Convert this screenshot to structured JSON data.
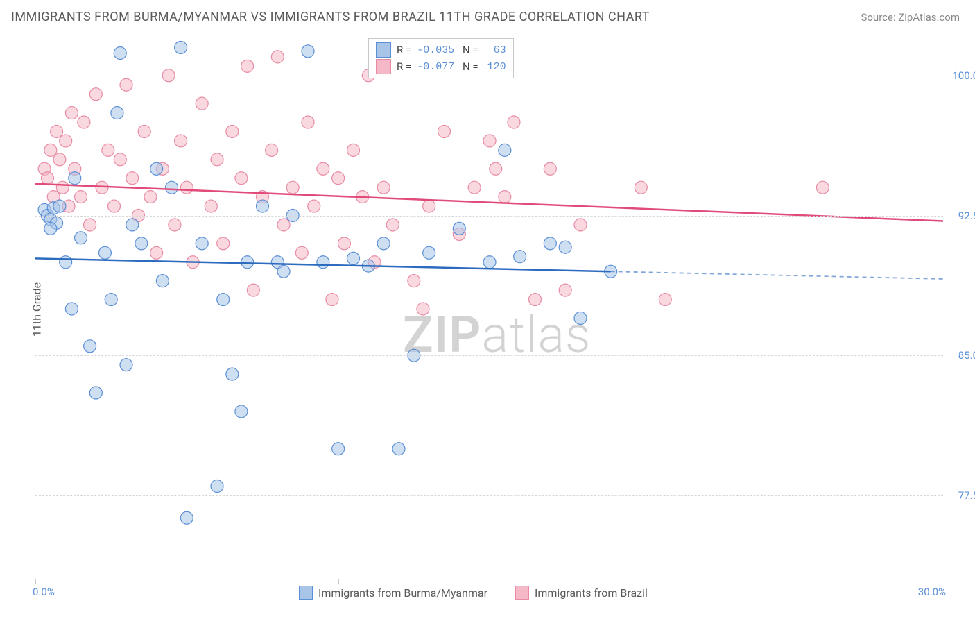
{
  "chart": {
    "title": "IMMIGRANTS FROM BURMA/MYANMAR VS IMMIGRANTS FROM BRAZIL 11TH GRADE CORRELATION CHART",
    "source": "Source: ZipAtlas.com",
    "watermark_prefix": "ZIP",
    "watermark_suffix": "atlas",
    "y_axis_label": "11th Grade",
    "type": "scatter",
    "xlim": [
      0,
      30
    ],
    "ylim": [
      73,
      102
    ],
    "y_ticks": [
      77.5,
      85.0,
      92.5,
      100.0
    ],
    "y_tick_labels": [
      "77.5%",
      "85.0%",
      "92.5%",
      "100.0%"
    ],
    "x_range_labels": {
      "min": "0.0%",
      "max": "30.0%"
    },
    "x_tick_positions": [
      0,
      5,
      10,
      15,
      20,
      25
    ],
    "background_color": "#ffffff",
    "grid_color": "#d8d8d8",
    "axis_color": "#c8c8c8",
    "marker_radius": 9,
    "marker_opacity": 0.55,
    "series": [
      {
        "name": "Immigrants from Burma/Myanmar",
        "fill_color": "#a8c5e8",
        "stroke_color": "#5b8fd6",
        "line_color": "#2d6bbf",
        "R": "-0.035",
        "N": "63",
        "regression": {
          "x1": 0,
          "y1": 90.2,
          "x2": 19,
          "y2": 89.5,
          "x2_dash": 30,
          "y2_dash": 89.1
        },
        "points": [
          [
            0.3,
            92.8
          ],
          [
            0.4,
            92.5
          ],
          [
            0.5,
            92.3
          ],
          [
            0.6,
            92.9
          ],
          [
            0.7,
            92.1
          ],
          [
            0.8,
            93.0
          ],
          [
            0.5,
            91.8
          ],
          [
            1.0,
            90.0
          ],
          [
            1.2,
            87.5
          ],
          [
            1.3,
            94.5
          ],
          [
            1.5,
            91.3
          ],
          [
            1.8,
            85.5
          ],
          [
            2.0,
            83.0
          ],
          [
            2.3,
            90.5
          ],
          [
            2.5,
            88.0
          ],
          [
            2.7,
            98.0
          ],
          [
            2.8,
            101.2
          ],
          [
            3.0,
            84.5
          ],
          [
            3.2,
            92.0
          ],
          [
            3.5,
            91.0
          ],
          [
            4.0,
            95.0
          ],
          [
            4.2,
            89.0
          ],
          [
            4.5,
            94.0
          ],
          [
            4.8,
            101.5
          ],
          [
            5.0,
            76.3
          ],
          [
            5.5,
            91.0
          ],
          [
            6.0,
            78.0
          ],
          [
            6.2,
            88.0
          ],
          [
            6.5,
            84.0
          ],
          [
            6.8,
            82.0
          ],
          [
            7.0,
            90.0
          ],
          [
            7.5,
            93.0
          ],
          [
            8.0,
            90.0
          ],
          [
            8.2,
            89.5
          ],
          [
            8.5,
            92.5
          ],
          [
            9.0,
            101.3
          ],
          [
            9.5,
            90.0
          ],
          [
            10.0,
            80.0
          ],
          [
            10.5,
            90.2
          ],
          [
            11.0,
            89.8
          ],
          [
            11.5,
            91.0
          ],
          [
            12.0,
            80.0
          ],
          [
            12.5,
            85.0
          ],
          [
            13.0,
            90.5
          ],
          [
            14.0,
            91.8
          ],
          [
            15.0,
            90.0
          ],
          [
            15.5,
            96.0
          ],
          [
            16.0,
            90.3
          ],
          [
            17.0,
            91.0
          ],
          [
            17.5,
            90.8
          ],
          [
            18.0,
            87.0
          ],
          [
            19.0,
            89.5
          ]
        ]
      },
      {
        "name": "Immigrants from Brazil",
        "fill_color": "#f5b8c7",
        "stroke_color": "#e88ba3",
        "line_color": "#e14b7a",
        "R": "-0.077",
        "N": "120",
        "regression": {
          "x1": 0,
          "y1": 94.2,
          "x2": 30,
          "y2": 92.2
        },
        "points": [
          [
            0.3,
            95.0
          ],
          [
            0.4,
            94.5
          ],
          [
            0.5,
            96.0
          ],
          [
            0.6,
            93.5
          ],
          [
            0.7,
            97.0
          ],
          [
            0.8,
            95.5
          ],
          [
            0.9,
            94.0
          ],
          [
            1.0,
            96.5
          ],
          [
            1.1,
            93.0
          ],
          [
            1.2,
            98.0
          ],
          [
            1.3,
            95.0
          ],
          [
            1.5,
            93.5
          ],
          [
            1.6,
            97.5
          ],
          [
            1.8,
            92.0
          ],
          [
            2.0,
            99.0
          ],
          [
            2.2,
            94.0
          ],
          [
            2.4,
            96.0
          ],
          [
            2.6,
            93.0
          ],
          [
            2.8,
            95.5
          ],
          [
            3.0,
            99.5
          ],
          [
            3.2,
            94.5
          ],
          [
            3.4,
            92.5
          ],
          [
            3.6,
            97.0
          ],
          [
            3.8,
            93.5
          ],
          [
            4.0,
            90.5
          ],
          [
            4.2,
            95.0
          ],
          [
            4.4,
            100.0
          ],
          [
            4.6,
            92.0
          ],
          [
            4.8,
            96.5
          ],
          [
            5.0,
            94.0
          ],
          [
            5.2,
            90.0
          ],
          [
            5.5,
            98.5
          ],
          [
            5.8,
            93.0
          ],
          [
            6.0,
            95.5
          ],
          [
            6.2,
            91.0
          ],
          [
            6.5,
            97.0
          ],
          [
            6.8,
            94.5
          ],
          [
            7.0,
            100.5
          ],
          [
            7.2,
            88.5
          ],
          [
            7.5,
            93.5
          ],
          [
            7.8,
            96.0
          ],
          [
            8.0,
            101.0
          ],
          [
            8.2,
            92.0
          ],
          [
            8.5,
            94.0
          ],
          [
            8.8,
            90.5
          ],
          [
            9.0,
            97.5
          ],
          [
            9.2,
            93.0
          ],
          [
            9.5,
            95.0
          ],
          [
            9.8,
            88.0
          ],
          [
            10.0,
            94.5
          ],
          [
            10.2,
            91.0
          ],
          [
            10.5,
            96.0
          ],
          [
            10.8,
            93.5
          ],
          [
            11.0,
            100.0
          ],
          [
            11.2,
            90.0
          ],
          [
            11.5,
            94.0
          ],
          [
            11.8,
            92.0
          ],
          [
            12.0,
            101.0
          ],
          [
            12.5,
            89.0
          ],
          [
            12.8,
            87.5
          ],
          [
            13.0,
            93.0
          ],
          [
            13.5,
            97.0
          ],
          [
            14.0,
            91.5
          ],
          [
            14.5,
            94.0
          ],
          [
            15.0,
            96.5
          ],
          [
            15.2,
            95.0
          ],
          [
            15.5,
            93.5
          ],
          [
            15.8,
            97.5
          ],
          [
            16.5,
            88.0
          ],
          [
            17.0,
            95.0
          ],
          [
            17.5,
            88.5
          ],
          [
            18.0,
            92.0
          ],
          [
            20.0,
            94.0
          ],
          [
            26.0,
            94.0
          ],
          [
            20.8,
            88.0
          ]
        ]
      }
    ],
    "legend_bottom": [
      {
        "label": "Immigrants from Burma/Myanmar",
        "fill": "#a8c5e8",
        "stroke": "#5b8fd6"
      },
      {
        "label": "Immigrants from Brazil",
        "fill": "#f5b8c7",
        "stroke": "#e88ba3"
      }
    ]
  }
}
